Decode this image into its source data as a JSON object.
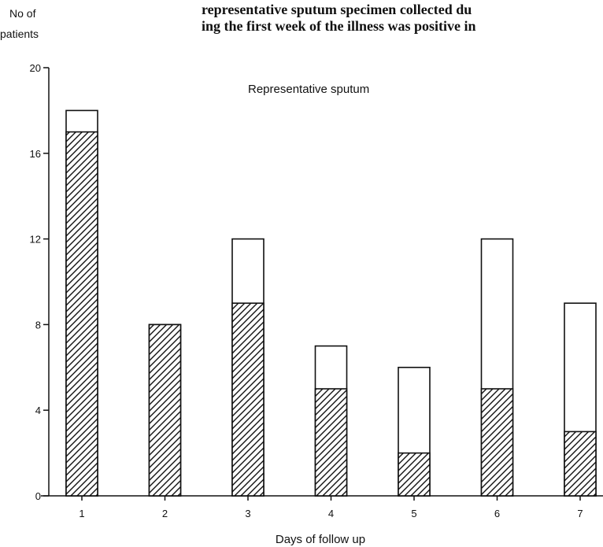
{
  "caption_fragment": {
    "line1": "representative sputum specimen collected du",
    "line2": "ing the first week of the illness was positive in"
  },
  "chart_data": {
    "type": "bar",
    "title": "Representative sputum",
    "xlabel": "Days of follow up",
    "ylabel_line1": "No of",
    "ylabel_line2": "patients",
    "categories": [
      "1",
      "2",
      "3",
      "4",
      "5",
      "6",
      "7"
    ],
    "ylim": [
      0,
      20
    ],
    "yticks": [
      "0",
      "4",
      "8",
      "12",
      "16",
      "20"
    ],
    "series": [
      {
        "values": [
          18,
          8,
          12,
          7,
          6,
          12,
          9
        ],
        "style": "open"
      },
      {
        "values": [
          17,
          8,
          9,
          5,
          2,
          5,
          3
        ],
        "style": "hatched"
      }
    ],
    "grid": false,
    "legend": "none"
  }
}
